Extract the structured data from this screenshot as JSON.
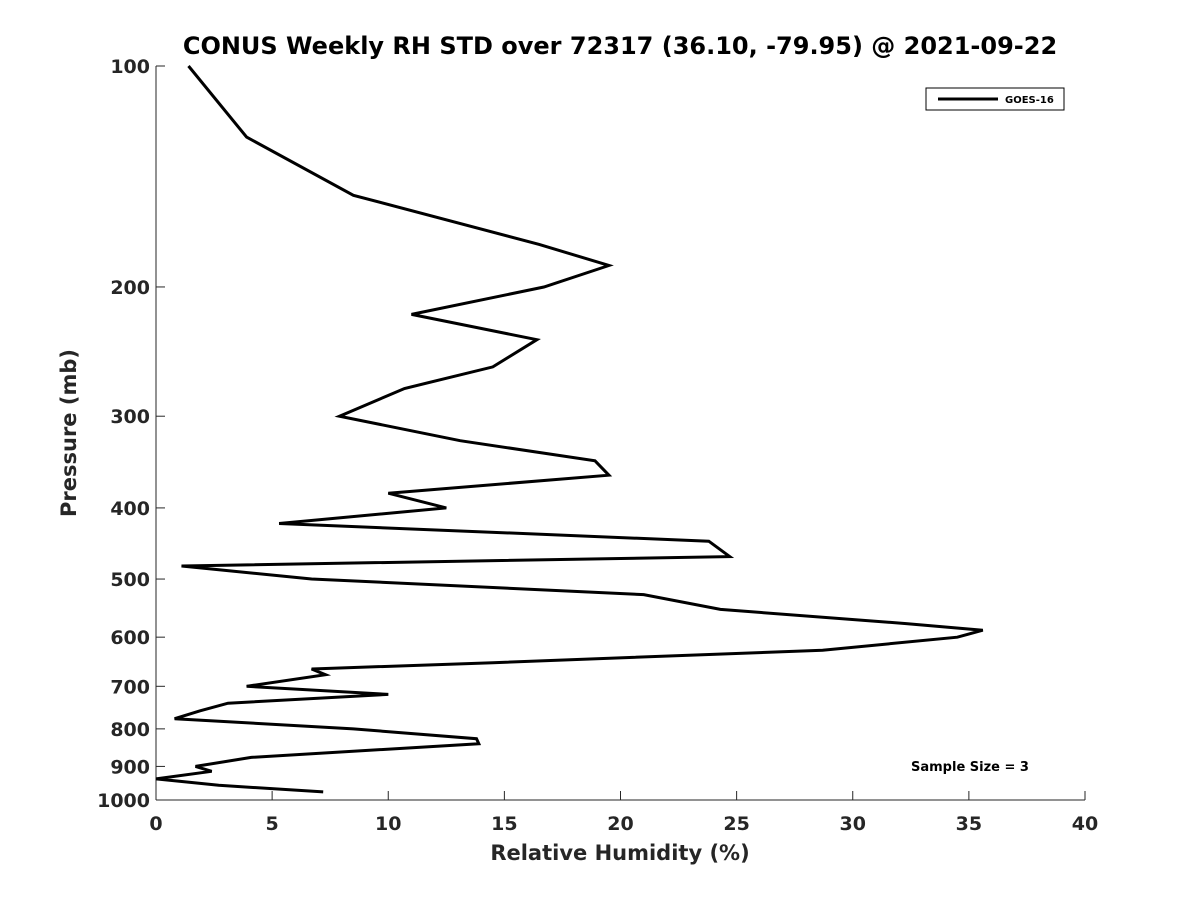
{
  "chart_data": {
    "type": "line",
    "title": "CONUS Weekly RH STD over 72317 (36.10, -79.95) @ 2021-09-22",
    "xlabel": "Relative Humidity (%)",
    "ylabel": "Pressure (mb)",
    "xlim": [
      0,
      40
    ],
    "ylim": [
      100,
      1000
    ],
    "yscale": "log",
    "y_reversed": true,
    "x_ticks": [
      0,
      5,
      10,
      15,
      20,
      25,
      30,
      35,
      40
    ],
    "x_tick_labels": [
      "0",
      "5",
      "10",
      "15",
      "20",
      "25",
      "30",
      "35",
      "40"
    ],
    "y_ticks": [
      100,
      200,
      300,
      400,
      500,
      600,
      700,
      800,
      900,
      1000
    ],
    "y_tick_labels": [
      "100",
      "200",
      "300",
      "400",
      "500",
      "600",
      "700",
      "800",
      "900",
      "1000"
    ],
    "grid": false,
    "legend": {
      "position": "top-right"
    },
    "annotation": "Sample Size = 3",
    "series": [
      {
        "name": "GOES-16",
        "color": "#000000",
        "points": [
          [
            1.4,
            100
          ],
          [
            3.9,
            125
          ],
          [
            8.5,
            150
          ],
          [
            16.5,
            175
          ],
          [
            19.5,
            187
          ],
          [
            16.7,
            200
          ],
          [
            11.0,
            218
          ],
          [
            16.4,
            236
          ],
          [
            14.5,
            257
          ],
          [
            10.7,
            275
          ],
          [
            7.9,
            300
          ],
          [
            13.1,
            324
          ],
          [
            18.9,
            345
          ],
          [
            19.5,
            361
          ],
          [
            10.0,
            382
          ],
          [
            12.5,
            400
          ],
          [
            5.3,
            420
          ],
          [
            23.8,
            444
          ],
          [
            24.7,
            466
          ],
          [
            1.1,
            480
          ],
          [
            6.7,
            500
          ],
          [
            21.0,
            525
          ],
          [
            24.3,
            550
          ],
          [
            32.3,
            575
          ],
          [
            35.6,
            587
          ],
          [
            34.5,
            600
          ],
          [
            28.7,
            625
          ],
          [
            14.5,
            650
          ],
          [
            6.7,
            663
          ],
          [
            7.3,
            675
          ],
          [
            3.9,
            700
          ],
          [
            10.0,
            718
          ],
          [
            3.1,
            738
          ],
          [
            1.9,
            756
          ],
          [
            0.8,
            775
          ],
          [
            8.5,
            800
          ],
          [
            13.8,
            825
          ],
          [
            13.9,
            838
          ],
          [
            4.1,
            875
          ],
          [
            1.7,
            900
          ],
          [
            2.4,
            914
          ],
          [
            0.0,
            936
          ],
          [
            2.7,
            955
          ],
          [
            7.2,
            975
          ]
        ]
      }
    ]
  }
}
